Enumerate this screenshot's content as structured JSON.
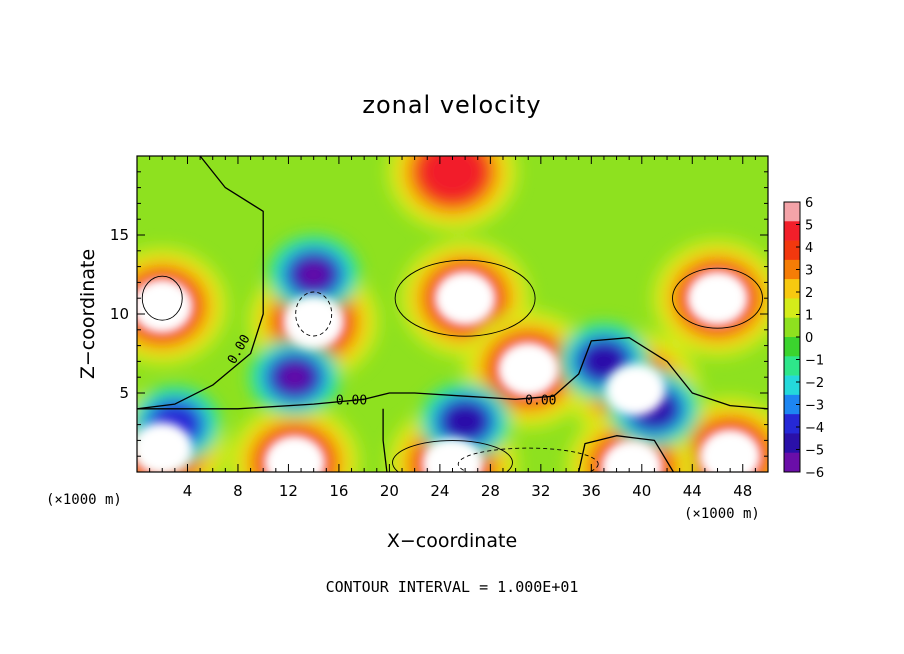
{
  "chart_data": {
    "type": "heatmap",
    "title": "zonal velocity",
    "xlabel": "X−coordinate",
    "ylabel": "Z−coordinate",
    "x_unit_left": "(×1000 m)",
    "x_unit_right": "(×1000 m)",
    "xlim": [
      0,
      50
    ],
    "ylim": [
      0,
      20
    ],
    "x_ticks": [
      4,
      8,
      12,
      16,
      20,
      24,
      28,
      32,
      36,
      40,
      44,
      48
    ],
    "y_ticks": [
      5,
      10,
      15
    ],
    "colorbar": {
      "range": [
        -6,
        6
      ],
      "tick_labels": [
        "6",
        "5",
        "4",
        "3",
        "2",
        "1",
        "0",
        "−1",
        "−2",
        "−3",
        "−4",
        "−5",
        "−6"
      ],
      "colors": [
        "#f4a3a8",
        "#f21f2a",
        "#f2380e",
        "#f57d06",
        "#f7c910",
        "#d4ec1a",
        "#8ee11f",
        "#3bd42e",
        "#2ee68a",
        "#24d9db",
        "#1d86f2",
        "#2528d6",
        "#2a10a8",
        "#6a0ea8"
      ]
    },
    "contour_label": "0.00",
    "contour_interval_note": "CONTOUR INTERVAL = 1.000E+01",
    "positive_cores": [
      {
        "x": 2,
        "z": 10.5,
        "u": 6
      },
      {
        "x": 26,
        "z": 11,
        "u": 6
      },
      {
        "x": 46,
        "z": 11,
        "u": 6
      },
      {
        "x": 14,
        "z": 9.5,
        "u": 6
      },
      {
        "x": 39.5,
        "z": 5.2,
        "u": 6
      },
      {
        "x": 25,
        "z": 0.5,
        "u": 6
      },
      {
        "x": 12.5,
        "z": 0.6,
        "u": 6
      },
      {
        "x": 2,
        "z": 1.5,
        "u": 6
      },
      {
        "x": 47,
        "z": 1,
        "u": 6
      },
      {
        "x": 39.2,
        "z": 0.3,
        "u": 6
      },
      {
        "x": 25,
        "z": 19,
        "u": 5
      },
      {
        "x": 31,
        "z": 6.5,
        "u": 6
      }
    ],
    "negative_cores": [
      {
        "x": 14,
        "z": 12.5,
        "u": -5.5
      },
      {
        "x": 12.5,
        "z": 6,
        "u": -5.5
      },
      {
        "x": 37,
        "z": 7,
        "u": -4.5
      },
      {
        "x": 41,
        "z": 4,
        "u": -4.5
      },
      {
        "x": 26,
        "z": 3.2,
        "u": -4.5
      },
      {
        "x": 3,
        "z": 3,
        "u": -3.5
      }
    ]
  }
}
